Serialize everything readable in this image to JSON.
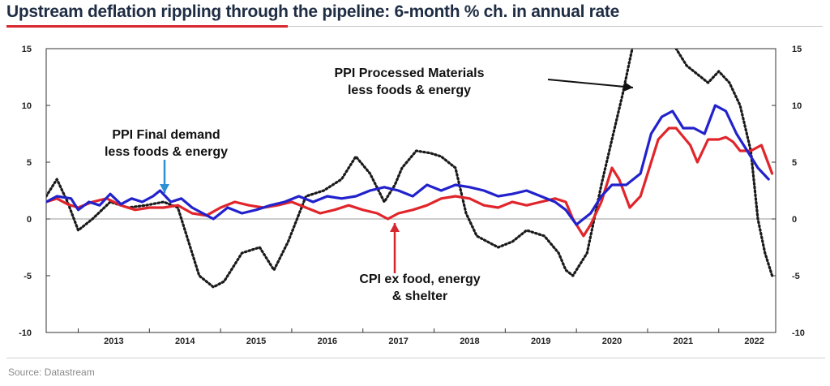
{
  "title": "Upstream deflation rippling through the pipeline: 6-month % ch. in annual rate",
  "source": "Source: Datastream",
  "colors": {
    "ppi_final": "#2222cc",
    "cpi_ex": "#e0252b",
    "ppi_processed": "#1a1a1a",
    "title_text": "#1f2d44",
    "title_rule": "#d7262e",
    "arrow_blue": "#2d8fd6",
    "arrow_red": "#d7262e",
    "arrow_black": "#111111"
  },
  "annotations": {
    "ppi_processed": [
      "PPI Processed Materials",
      "less foods & energy"
    ],
    "ppi_final": [
      "PPI Final demand",
      "less foods & energy"
    ],
    "cpi_ex": [
      "CPI ex food, energy",
      "& shelter"
    ]
  },
  "chart_data": {
    "type": "line",
    "title": "Upstream deflation rippling through the pipeline: 6-month % ch. in annual rate",
    "xlabel": "",
    "ylabel": "",
    "x_range": [
      2012.55,
      2022.8
    ],
    "ylim": [
      -10,
      15
    ],
    "yticks": [
      15,
      10,
      5,
      0,
      -5,
      -10
    ],
    "yticks_right": [
      15,
      10,
      5,
      0,
      -5,
      -10
    ],
    "xticks": [
      "2013",
      "2014",
      "2015",
      "2016",
      "2017",
      "2018",
      "2019",
      "2020",
      "2021",
      "2022"
    ],
    "zero_line": true,
    "grid": false,
    "legend": "none",
    "series": [
      {
        "name": "PPI Processed Materials less foods & energy",
        "style": "dotted",
        "x": [
          2012.55,
          2012.7,
          2012.85,
          2013.0,
          2013.2,
          2013.45,
          2013.7,
          2013.95,
          2014.2,
          2014.4,
          2014.55,
          2014.7,
          2014.9,
          2015.05,
          2015.3,
          2015.55,
          2015.75,
          2015.95,
          2016.2,
          2016.45,
          2016.7,
          2016.9,
          2017.1,
          2017.3,
          2017.45,
          2017.55,
          2017.75,
          2017.95,
          2018.1,
          2018.3,
          2018.45,
          2018.6,
          2018.75,
          2018.9,
          2019.1,
          2019.3,
          2019.55,
          2019.75,
          2019.85,
          2019.95,
          2020.15,
          2020.35,
          2020.5,
          2020.65,
          2020.75,
          2020.82,
          2021.3,
          2021.4,
          2021.55,
          2021.75,
          2021.85,
          2022.0,
          2022.15,
          2022.3,
          2022.45,
          2022.55,
          2022.65,
          2022.75
        ],
        "values": [
          2.0,
          3.5,
          1.5,
          -1.0,
          0.0,
          1.5,
          1.0,
          1.2,
          1.5,
          1.0,
          -2.0,
          -5.0,
          -6.0,
          -5.5,
          -3.0,
          -2.5,
          -4.5,
          -2.0,
          2.0,
          2.5,
          3.5,
          5.5,
          4.0,
          1.5,
          3.0,
          4.5,
          6.0,
          5.8,
          5.5,
          4.5,
          0.5,
          -1.5,
          -2.0,
          -2.5,
          -2.0,
          -1.0,
          -1.5,
          -3.0,
          -4.5,
          -5.0,
          -3.0,
          3.0,
          7.0,
          11.0,
          14.0,
          16.0,
          16.0,
          15.0,
          13.5,
          12.5,
          12.0,
          13.0,
          12.0,
          10.0,
          6.0,
          0.0,
          -3.0,
          -5.0
        ]
      },
      {
        "name": "PPI Final demand less foods & energy",
        "style": "solid",
        "x": [
          2012.55,
          2012.7,
          2012.9,
          2013.0,
          2013.15,
          2013.3,
          2013.45,
          2013.6,
          2013.75,
          2013.9,
          2014.05,
          2014.15,
          2014.3,
          2014.45,
          2014.6,
          2014.75,
          2014.9,
          2015.1,
          2015.3,
          2015.5,
          2015.7,
          2015.9,
          2016.1,
          2016.3,
          2016.5,
          2016.7,
          2016.9,
          2017.1,
          2017.3,
          2017.5,
          2017.7,
          2017.9,
          2018.1,
          2018.3,
          2018.5,
          2018.7,
          2018.9,
          2019.1,
          2019.3,
          2019.5,
          2019.7,
          2019.85,
          2020.0,
          2020.2,
          2020.35,
          2020.5,
          2020.7,
          2020.9,
          2021.05,
          2021.2,
          2021.35,
          2021.5,
          2021.65,
          2021.8,
          2021.95,
          2022.1,
          2022.25,
          2022.4,
          2022.55,
          2022.7
        ],
        "values": [
          1.5,
          2.0,
          1.8,
          0.8,
          1.5,
          1.2,
          2.2,
          1.3,
          1.8,
          1.5,
          2.0,
          2.5,
          1.5,
          1.8,
          1.0,
          0.5,
          0.0,
          1.0,
          0.5,
          0.8,
          1.2,
          1.5,
          2.0,
          1.5,
          2.0,
          1.8,
          2.0,
          2.5,
          2.8,
          2.5,
          2.0,
          3.0,
          2.5,
          3.0,
          2.8,
          2.5,
          2.0,
          2.2,
          2.5,
          2.0,
          1.5,
          0.8,
          -0.5,
          0.5,
          2.0,
          3.0,
          3.0,
          4.0,
          7.5,
          9.0,
          9.5,
          8.0,
          8.0,
          7.5,
          10.0,
          9.5,
          7.5,
          6.0,
          4.5,
          3.5
        ]
      },
      {
        "name": "CPI ex food, energy & shelter",
        "style": "solid",
        "x": [
          2012.55,
          2012.7,
          2012.85,
          2013.0,
          2013.2,
          2013.4,
          2013.6,
          2013.8,
          2014.0,
          2014.2,
          2014.4,
          2014.6,
          2014.8,
          2015.0,
          2015.2,
          2015.4,
          2015.6,
          2015.8,
          2016.0,
          2016.2,
          2016.4,
          2016.6,
          2016.8,
          2017.0,
          2017.2,
          2017.35,
          2017.5,
          2017.7,
          2017.9,
          2018.1,
          2018.3,
          2018.5,
          2018.7,
          2018.9,
          2019.1,
          2019.3,
          2019.5,
          2019.7,
          2019.85,
          2019.95,
          2020.1,
          2020.2,
          2020.35,
          2020.5,
          2020.6,
          2020.75,
          2020.9,
          2021.0,
          2021.15,
          2021.3,
          2021.4,
          2021.6,
          2021.7,
          2021.85,
          2022.0,
          2022.1,
          2022.2,
          2022.3,
          2022.45,
          2022.6,
          2022.75
        ],
        "values": [
          1.5,
          1.8,
          1.3,
          1.0,
          1.5,
          1.8,
          1.2,
          0.8,
          1.0,
          1.0,
          1.2,
          0.5,
          0.3,
          1.0,
          1.5,
          1.2,
          1.0,
          1.2,
          1.5,
          1.0,
          0.5,
          0.8,
          1.2,
          0.8,
          0.5,
          0.0,
          0.5,
          0.8,
          1.2,
          1.8,
          2.0,
          1.8,
          1.2,
          1.0,
          1.5,
          1.2,
          1.5,
          1.8,
          1.5,
          0.0,
          -1.5,
          -0.5,
          1.5,
          4.5,
          3.5,
          1.0,
          2.0,
          4.0,
          7.0,
          8.0,
          8.0,
          6.5,
          5.0,
          7.0,
          7.0,
          7.2,
          6.8,
          6.0,
          6.0,
          6.5,
          4.0
        ]
      }
    ]
  }
}
